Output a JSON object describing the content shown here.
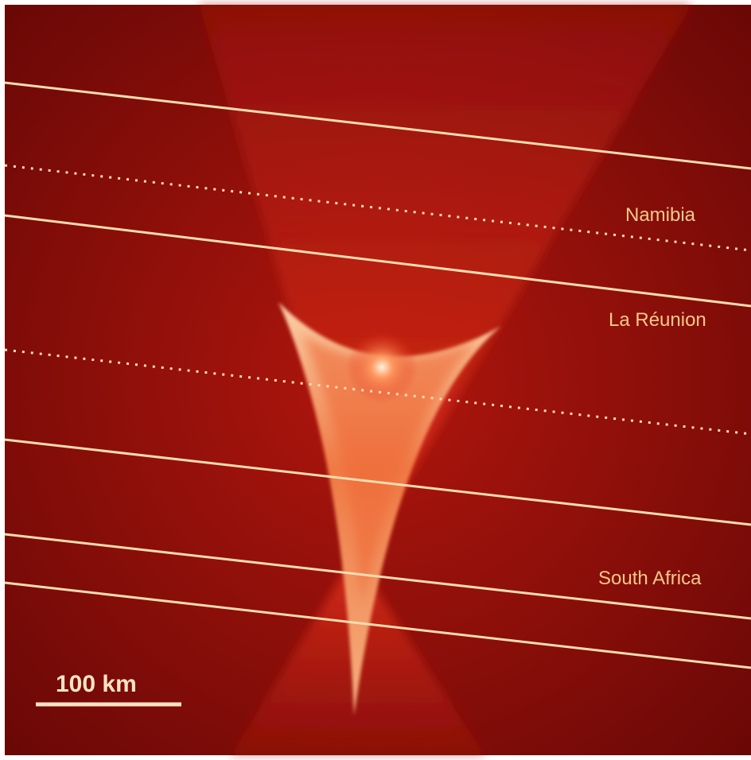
{
  "labels": {
    "namibia": "Namibia",
    "reunion": "La Réunion",
    "south_africa": "South Africa"
  },
  "scale_bar": {
    "label": "100 km"
  }
}
